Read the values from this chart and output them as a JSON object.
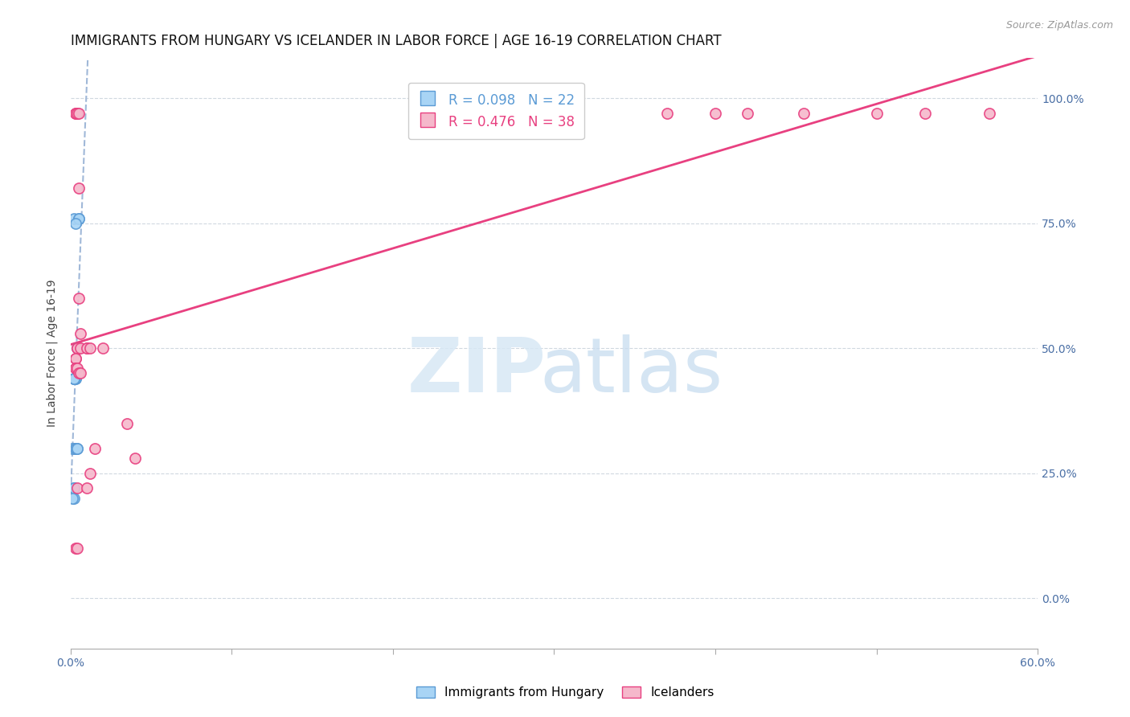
{
  "title": "IMMIGRANTS FROM HUNGARY VS ICELANDER IN LABOR FORCE | AGE 16-19 CORRELATION CHART",
  "source": "Source: ZipAtlas.com",
  "ylabel": "In Labor Force | Age 16-19",
  "hungary_x": [
    0.002,
    0.005,
    0.005,
    0.003,
    0.004,
    0.004,
    0.003,
    0.003,
    0.002,
    0.002,
    0.002,
    0.002,
    0.002,
    0.002,
    0.002,
    0.002,
    0.001,
    0.001,
    0.003,
    0.003,
    0.004,
    0.004
  ],
  "hungary_y": [
    0.76,
    0.76,
    0.76,
    0.75,
    0.5,
    0.5,
    0.44,
    0.44,
    0.44,
    0.44,
    0.44,
    0.44,
    0.3,
    0.22,
    0.22,
    0.2,
    0.2,
    0.3,
    0.3,
    0.3,
    0.3,
    0.3
  ],
  "iceland_x": [
    0.003,
    0.004,
    0.003,
    0.004,
    0.005,
    0.005,
    0.005,
    0.006,
    0.005,
    0.004,
    0.004,
    0.003,
    0.003,
    0.003,
    0.003,
    0.004,
    0.005,
    0.006,
    0.01,
    0.006,
    0.01,
    0.012,
    0.02,
    0.035,
    0.04,
    0.37,
    0.4,
    0.42,
    0.455,
    0.5,
    0.53,
    0.57,
    0.003,
    0.004,
    0.004,
    0.012,
    0.015,
    0.01
  ],
  "iceland_y": [
    0.97,
    0.97,
    0.97,
    0.97,
    0.97,
    0.82,
    0.6,
    0.53,
    0.5,
    0.5,
    0.5,
    0.48,
    0.48,
    0.46,
    0.46,
    0.46,
    0.45,
    0.45,
    0.5,
    0.5,
    0.5,
    0.5,
    0.5,
    0.35,
    0.28,
    0.97,
    0.97,
    0.97,
    0.97,
    0.97,
    0.97,
    0.97,
    0.1,
    0.1,
    0.22,
    0.25,
    0.3,
    0.22
  ],
  "hungary_color": "#a8d4f5",
  "iceland_color": "#f5b8cb",
  "hungary_edge_color": "#5b9bd5",
  "iceland_edge_color": "#e84080",
  "dashed_line_color": "#a0b8d8",
  "solid_line_color": "#e84080",
  "xlim": [
    0.0,
    0.6
  ],
  "ylim": [
    -0.1,
    1.08
  ],
  "yticks": [
    0.0,
    0.25,
    0.5,
    0.75,
    1.0
  ],
  "ytick_labels": [
    "0.0%",
    "25.0%",
    "50.0%",
    "75.0%",
    "100.0%"
  ],
  "title_fontsize": 12,
  "source_fontsize": 9,
  "tick_fontsize": 10,
  "legend_fontsize": 12
}
